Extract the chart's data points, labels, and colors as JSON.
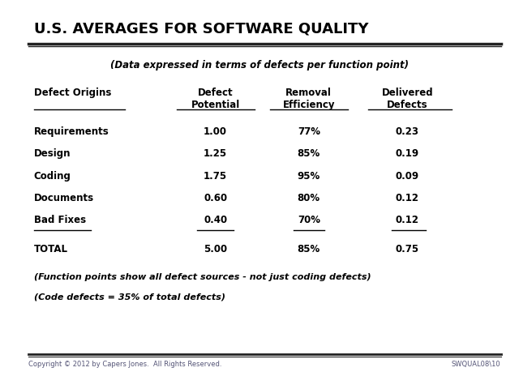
{
  "title": "U.S. AVERAGES FOR SOFTWARE QUALITY",
  "subtitle": "(Data expressed in terms of defects per function point)",
  "bg_color": "#ffffff",
  "title_color": "#000000",
  "col_headers": [
    "Defect\nPotential",
    "Removal\nEfficiency",
    "Delivered\nDefects"
  ],
  "row_header": "Defect Origins",
  "rows": [
    {
      "name": "Requirements",
      "defect_potential": "1.00",
      "removal_efficiency": "77%",
      "delivered_defects": "0.23",
      "underline": false
    },
    {
      "name": "Design",
      "defect_potential": "1.25",
      "removal_efficiency": "85%",
      "delivered_defects": "0.19",
      "underline": false
    },
    {
      "name": "Coding",
      "defect_potential": "1.75",
      "removal_efficiency": "95%",
      "delivered_defects": "0.09",
      "underline": false
    },
    {
      "name": "Documents",
      "defect_potential": "0.60",
      "removal_efficiency": "80%",
      "delivered_defects": "0.12",
      "underline": false
    },
    {
      "name": "Bad Fixes",
      "defect_potential": "0.40",
      "removal_efficiency": "70%",
      "delivered_defects": "0.12",
      "underline": true
    }
  ],
  "total_row": {
    "name": "TOTAL",
    "defect_potential": "5.00",
    "removal_efficiency": "85%",
    "delivered_defects": "0.75"
  },
  "footnotes": [
    "(Function points show all defect sources - not just coding defects)",
    "(Code defects = 35% of total defects)"
  ],
  "footer_left": "Copyright © 2012 by Capers Jones.  All Rights Reserved.",
  "footer_right": "SWQUAL08\\10",
  "font_family": "DejaVu Sans"
}
